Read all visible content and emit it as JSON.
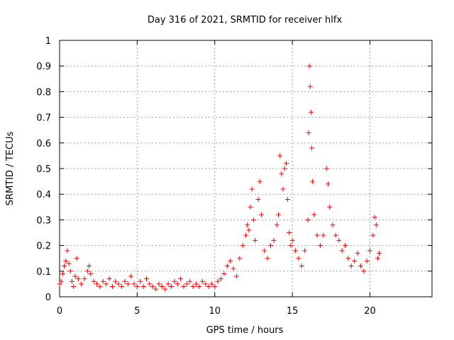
{
  "chart_data": {
    "type": "scatter",
    "title": "Day 316 of 2021, SRMTID for receiver hlfx",
    "xlabel": "GPS time / hours",
    "ylabel": "SRMTID / TECUs",
    "xlim": [
      0,
      24
    ],
    "ylim": [
      0,
      1
    ],
    "x_ticks": [
      0,
      5,
      10,
      15,
      20
    ],
    "y_ticks": [
      0,
      0.1,
      0.2,
      0.3,
      0.4,
      0.5,
      0.6,
      0.7,
      0.8,
      0.9,
      1
    ],
    "x_tick_labels": [
      "0",
      "5",
      "10",
      "15",
      "20"
    ],
    "y_tick_labels": [
      "0",
      "0.1",
      "0.2",
      "0.3",
      "0.4",
      "0.5",
      "0.6",
      "0.7",
      "0.8",
      "0.9",
      "1"
    ],
    "grid": true,
    "marker": "+",
    "color": "#ff0000",
    "series": [
      {
        "name": "SRMTID",
        "points": [
          [
            0.0,
            0.05
          ],
          [
            0.1,
            0.06
          ],
          [
            0.2,
            0.09
          ],
          [
            0.3,
            0.12
          ],
          [
            0.4,
            0.14
          ],
          [
            0.5,
            0.18
          ],
          [
            0.6,
            0.13
          ],
          [
            0.7,
            0.1
          ],
          [
            0.8,
            0.06
          ],
          [
            0.9,
            0.04
          ],
          [
            1.0,
            0.08
          ],
          [
            1.1,
            0.15
          ],
          [
            1.2,
            0.07
          ],
          [
            1.4,
            0.05
          ],
          [
            1.6,
            0.07
          ],
          [
            1.8,
            0.1
          ],
          [
            1.9,
            0.12
          ],
          [
            2.0,
            0.09
          ],
          [
            2.2,
            0.06
          ],
          [
            2.4,
            0.05
          ],
          [
            2.6,
            0.04
          ],
          [
            2.8,
            0.06
          ],
          [
            3.0,
            0.05
          ],
          [
            3.2,
            0.07
          ],
          [
            3.4,
            0.04
          ],
          [
            3.6,
            0.06
          ],
          [
            3.8,
            0.05
          ],
          [
            4.0,
            0.04
          ],
          [
            4.2,
            0.06
          ],
          [
            4.4,
            0.05
          ],
          [
            4.6,
            0.08
          ],
          [
            4.8,
            0.05
          ],
          [
            5.0,
            0.04
          ],
          [
            5.2,
            0.06
          ],
          [
            5.4,
            0.04
          ],
          [
            5.6,
            0.07
          ],
          [
            5.8,
            0.05
          ],
          [
            6.0,
            0.04
          ],
          [
            6.2,
            0.03
          ],
          [
            6.4,
            0.05
          ],
          [
            6.6,
            0.04
          ],
          [
            6.8,
            0.03
          ],
          [
            7.0,
            0.05
          ],
          [
            7.2,
            0.04
          ],
          [
            7.4,
            0.06
          ],
          [
            7.6,
            0.05
          ],
          [
            7.8,
            0.07
          ],
          [
            8.0,
            0.04
          ],
          [
            8.2,
            0.05
          ],
          [
            8.4,
            0.06
          ],
          [
            8.6,
            0.04
          ],
          [
            8.8,
            0.05
          ],
          [
            9.0,
            0.04
          ],
          [
            9.2,
            0.06
          ],
          [
            9.4,
            0.05
          ],
          [
            9.6,
            0.04
          ],
          [
            9.8,
            0.05
          ],
          [
            10.0,
            0.04
          ],
          [
            10.2,
            0.06
          ],
          [
            10.4,
            0.07
          ],
          [
            10.6,
            0.09
          ],
          [
            10.8,
            0.12
          ],
          [
            11.0,
            0.14
          ],
          [
            11.2,
            0.11
          ],
          [
            11.4,
            0.08
          ],
          [
            11.6,
            0.15
          ],
          [
            11.8,
            0.2
          ],
          [
            12.0,
            0.24
          ],
          [
            12.1,
            0.28
          ],
          [
            12.2,
            0.26
          ],
          [
            12.3,
            0.35
          ],
          [
            12.4,
            0.42
          ],
          [
            12.5,
            0.3
          ],
          [
            12.6,
            0.22
          ],
          [
            12.8,
            0.38
          ],
          [
            12.9,
            0.45
          ],
          [
            13.0,
            0.32
          ],
          [
            13.2,
            0.18
          ],
          [
            13.4,
            0.15
          ],
          [
            13.6,
            0.2
          ],
          [
            13.8,
            0.22
          ],
          [
            14.0,
            0.28
          ],
          [
            14.1,
            0.32
          ],
          [
            14.2,
            0.55
          ],
          [
            14.3,
            0.48
          ],
          [
            14.4,
            0.42
          ],
          [
            14.5,
            0.5
          ],
          [
            14.6,
            0.52
          ],
          [
            14.7,
            0.38
          ],
          [
            14.8,
            0.25
          ],
          [
            14.9,
            0.2
          ],
          [
            15.0,
            0.22
          ],
          [
            15.2,
            0.18
          ],
          [
            15.4,
            0.15
          ],
          [
            15.6,
            0.12
          ],
          [
            15.8,
            0.18
          ],
          [
            16.0,
            0.3
          ],
          [
            16.05,
            0.64
          ],
          [
            16.1,
            0.9
          ],
          [
            16.15,
            0.82
          ],
          [
            16.2,
            0.72
          ],
          [
            16.25,
            0.58
          ],
          [
            16.3,
            0.45
          ],
          [
            16.4,
            0.32
          ],
          [
            16.6,
            0.24
          ],
          [
            16.8,
            0.2
          ],
          [
            17.0,
            0.24
          ],
          [
            17.2,
            0.5
          ],
          [
            17.3,
            0.44
          ],
          [
            17.4,
            0.35
          ],
          [
            17.6,
            0.28
          ],
          [
            17.8,
            0.24
          ],
          [
            18.0,
            0.22
          ],
          [
            18.2,
            0.18
          ],
          [
            18.4,
            0.2
          ],
          [
            18.6,
            0.15
          ],
          [
            18.8,
            0.12
          ],
          [
            19.0,
            0.14
          ],
          [
            19.2,
            0.17
          ],
          [
            19.4,
            0.12
          ],
          [
            19.6,
            0.1
          ],
          [
            19.8,
            0.14
          ],
          [
            20.0,
            0.18
          ],
          [
            20.2,
            0.24
          ],
          [
            20.3,
            0.31
          ],
          [
            20.4,
            0.28
          ],
          [
            20.5,
            0.15
          ],
          [
            20.6,
            0.17
          ]
        ]
      }
    ]
  }
}
